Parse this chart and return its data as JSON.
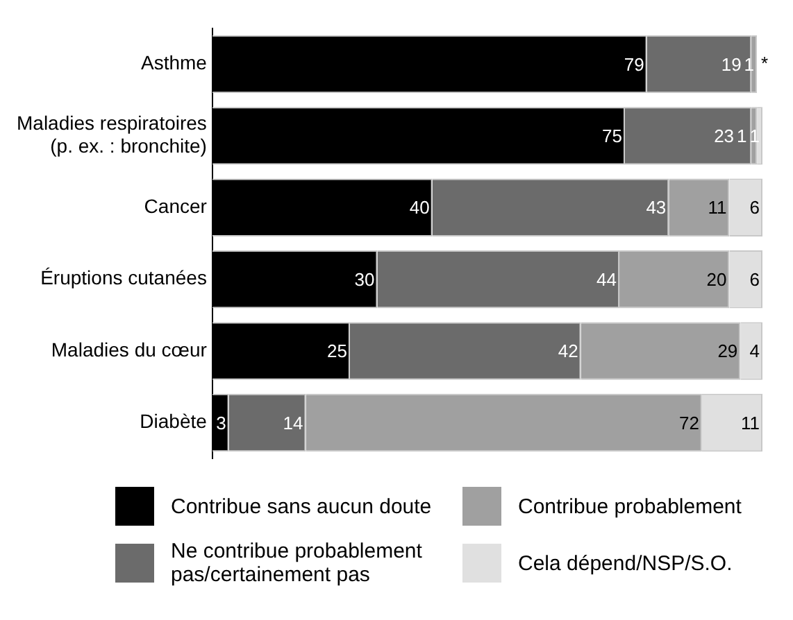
{
  "chart_data": {
    "type": "bar",
    "orientation": "horizontal",
    "stacked": true,
    "legend": "bottom",
    "tick_labels": "y",
    "grid": false,
    "categories": [
      "Asthme",
      "Maladies respiratoires\n(p. ex. : bronchite)",
      "Cancer",
      "Éruptions cutanées",
      "Maladies du cœur",
      "Diabète"
    ],
    "series": [
      {
        "name": "Contribue sans aucun doute",
        "color": "#000000",
        "values": [
          79,
          75,
          40,
          30,
          25,
          3
        ],
        "value_labels": [
          "79",
          "75",
          "40",
          "30",
          "25",
          "3"
        ]
      },
      {
        "name": "Ne contribue probablement pas/certainement pas",
        "color": "#6b6b6b",
        "values": [
          19,
          23,
          43,
          44,
          42,
          14
        ],
        "value_labels": [
          "19",
          "23",
          "43",
          "44",
          "42",
          "14"
        ]
      },
      {
        "name": "Contribue probablement",
        "color": "#a0a0a0",
        "values": [
          1,
          1,
          11,
          20,
          29,
          72
        ],
        "value_labels": [
          "1",
          "1",
          "11",
          "20",
          "29",
          "72"
        ]
      },
      {
        "name": "Cela dépend/NSP/S.O.",
        "color": "#e0e0e0",
        "values": [
          0,
          1,
          6,
          6,
          4,
          11
        ],
        "value_labels": [
          "*",
          "1",
          "6",
          "6",
          "4",
          "11"
        ]
      }
    ]
  }
}
